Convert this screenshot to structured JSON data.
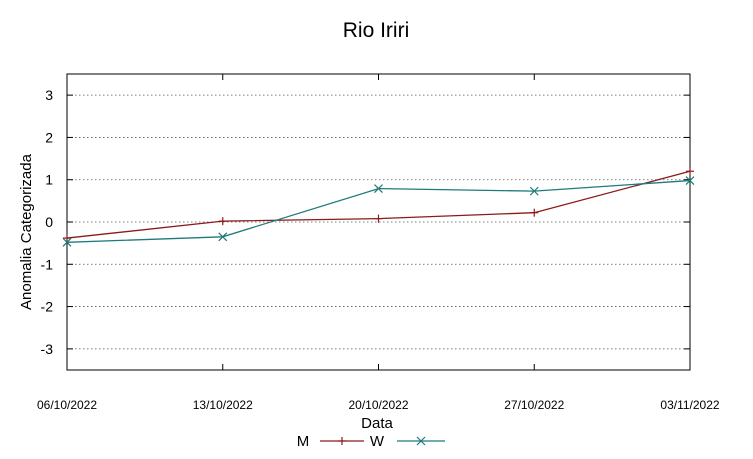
{
  "chart_data": {
    "type": "line",
    "title": "Rio Iriri",
    "xlabel": "Data",
    "ylabel": "Anomalia Categorizada",
    "categories": [
      "06/10/2022",
      "13/10/2022",
      "20/10/2022",
      "27/10/2022",
      "03/11/2022"
    ],
    "yticks": [
      "3",
      "2",
      "1",
      "0",
      "-1",
      "-2",
      "-3"
    ],
    "ylim": [
      -3.5,
      3.5
    ],
    "grid": "horizontal-dotted",
    "legend_position": "bottom-center",
    "series": [
      {
        "name": "M",
        "values": [
          -0.38,
          0.02,
          0.08,
          0.22,
          1.2
        ],
        "color": "#8b1a1a",
        "marker": "plus"
      },
      {
        "name": "W",
        "values": [
          -0.48,
          -0.35,
          0.79,
          0.73,
          0.98
        ],
        "color": "#1f7a7a",
        "marker": "cross"
      }
    ]
  }
}
